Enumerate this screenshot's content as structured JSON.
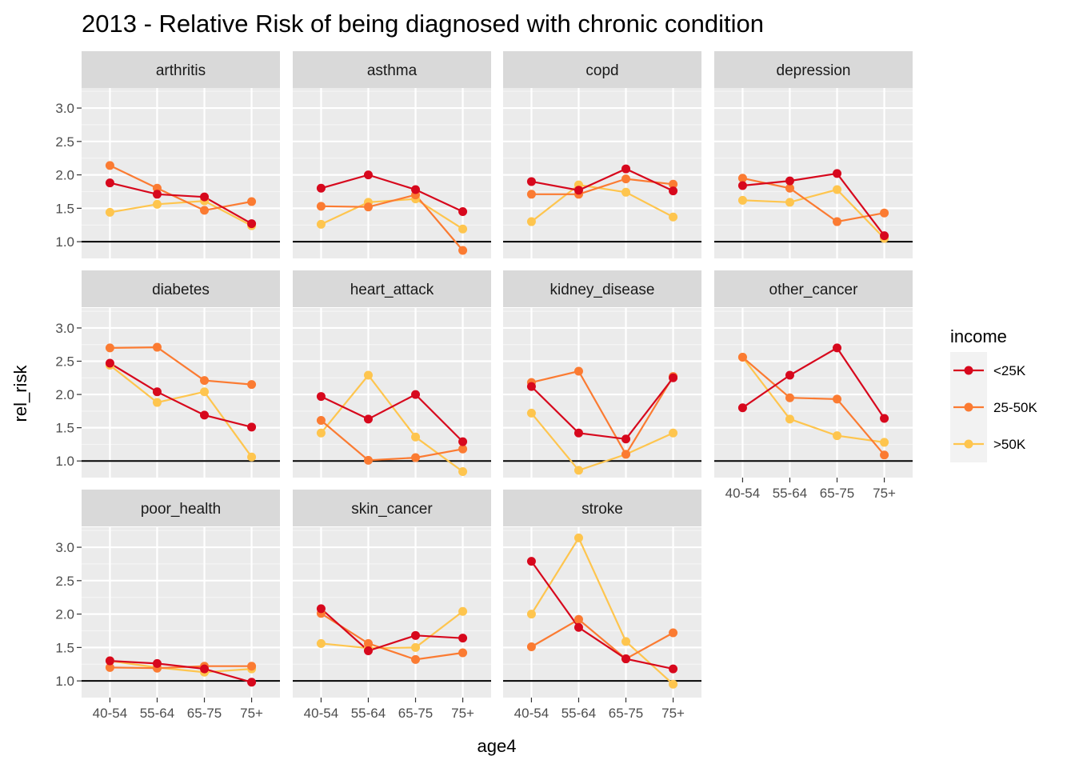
{
  "chart_data": {
    "type": "line",
    "title": "2013 - Relative Risk of being diagnosed with chronic condition",
    "xlabel": "age4",
    "ylabel": "rel_risk",
    "categories": [
      "40-54",
      "55-64",
      "65-75",
      "75+"
    ],
    "ylim": [
      0.75,
      3.3
    ],
    "yticks": [
      1.0,
      1.5,
      2.0,
      2.5,
      3.0
    ],
    "yticks_labels": [
      "1.0",
      "1.5",
      "2.0",
      "2.5",
      "3.0"
    ],
    "reference_line": 1.0,
    "legend": {
      "title": "income",
      "position": "right",
      "entries": [
        {
          "name": "<25K",
          "color": "#d7081d"
        },
        {
          "name": "25-50K",
          "color": "#fb7b32"
        },
        {
          "name": ">50K",
          "color": "#fec54e"
        }
      ]
    },
    "panels": [
      {
        "name": "arthritis",
        "series": [
          {
            "name": "<25K",
            "values": [
              1.88,
              1.71,
              1.67,
              1.27
            ]
          },
          {
            "name": "25-50K",
            "values": [
              2.14,
              1.8,
              1.47,
              1.6
            ]
          },
          {
            "name": ">50K",
            "values": [
              1.44,
              1.56,
              1.61,
              1.24
            ]
          }
        ]
      },
      {
        "name": "asthma",
        "series": [
          {
            "name": "<25K",
            "values": [
              1.8,
              2.0,
              1.78,
              1.45
            ]
          },
          {
            "name": "25-50K",
            "values": [
              1.53,
              1.52,
              1.7,
              0.87
            ]
          },
          {
            "name": ">50K",
            "values": [
              1.26,
              1.59,
              1.64,
              1.19
            ]
          }
        ]
      },
      {
        "name": "copd",
        "series": [
          {
            "name": "<25K",
            "values": [
              1.9,
              1.77,
              2.09,
              1.76
            ]
          },
          {
            "name": "25-50K",
            "values": [
              1.71,
              1.71,
              1.94,
              1.86
            ]
          },
          {
            "name": ">50K",
            "values": [
              1.3,
              1.85,
              1.74,
              1.37
            ]
          }
        ]
      },
      {
        "name": "depression",
        "series": [
          {
            "name": "<25K",
            "values": [
              1.84,
              1.91,
              2.02,
              1.09
            ]
          },
          {
            "name": "25-50K",
            "values": [
              1.95,
              1.8,
              1.3,
              1.43
            ]
          },
          {
            "name": ">50K",
            "values": [
              1.62,
              1.59,
              1.78,
              1.05
            ]
          }
        ]
      },
      {
        "name": "diabetes",
        "series": [
          {
            "name": "<25K",
            "values": [
              2.47,
              2.04,
              1.69,
              1.51
            ]
          },
          {
            "name": "25-50K",
            "values": [
              2.7,
              2.71,
              2.21,
              2.15
            ]
          },
          {
            "name": ">50K",
            "values": [
              2.44,
              1.88,
              2.04,
              1.06
            ]
          }
        ]
      },
      {
        "name": "heart_attack",
        "series": [
          {
            "name": "<25K",
            "values": [
              1.97,
              1.63,
              2.0,
              1.29
            ]
          },
          {
            "name": "25-50K",
            "values": [
              1.61,
              1.01,
              1.05,
              1.18
            ]
          },
          {
            "name": ">50K",
            "values": [
              1.42,
              2.29,
              1.36,
              0.84
            ]
          }
        ]
      },
      {
        "name": "kidney_disease",
        "series": [
          {
            "name": "<25K",
            "values": [
              2.12,
              1.42,
              1.33,
              2.25
            ]
          },
          {
            "name": "25-50K",
            "values": [
              2.18,
              2.35,
              1.1,
              2.27
            ]
          },
          {
            "name": ">50K",
            "values": [
              1.72,
              0.86,
              1.1,
              1.42
            ]
          }
        ]
      },
      {
        "name": "other_cancer",
        "series": [
          {
            "name": "<25K",
            "values": [
              1.8,
              2.29,
              2.7,
              1.64
            ]
          },
          {
            "name": "25-50K",
            "values": [
              2.56,
              1.95,
              1.93,
              1.09
            ]
          },
          {
            "name": ">50K",
            "values": [
              2.56,
              1.63,
              1.38,
              1.28
            ]
          }
        ]
      },
      {
        "name": "poor_health",
        "series": [
          {
            "name": "<25K",
            "values": [
              1.3,
              1.26,
              1.18,
              0.98
            ]
          },
          {
            "name": "25-50K",
            "values": [
              1.2,
              1.19,
              1.22,
              1.22
            ]
          },
          {
            "name": ">50K",
            "values": [
              1.3,
              1.2,
              1.13,
              1.18
            ]
          }
        ]
      },
      {
        "name": "skin_cancer",
        "series": [
          {
            "name": "<25K",
            "values": [
              2.08,
              1.45,
              1.68,
              1.64
            ]
          },
          {
            "name": "25-50K",
            "values": [
              2.01,
              1.56,
              1.32,
              1.42
            ]
          },
          {
            "name": ">50K",
            "values": [
              1.56,
              1.49,
              1.5,
              2.04
            ]
          }
        ]
      },
      {
        "name": "stroke",
        "series": [
          {
            "name": "<25K",
            "values": [
              2.79,
              1.8,
              1.33,
              1.18
            ]
          },
          {
            "name": "25-50K",
            "values": [
              1.51,
              1.92,
              1.33,
              1.72
            ]
          },
          {
            "name": ">50K",
            "values": [
              2.0,
              3.14,
              1.59,
              0.95
            ]
          }
        ]
      }
    ]
  }
}
